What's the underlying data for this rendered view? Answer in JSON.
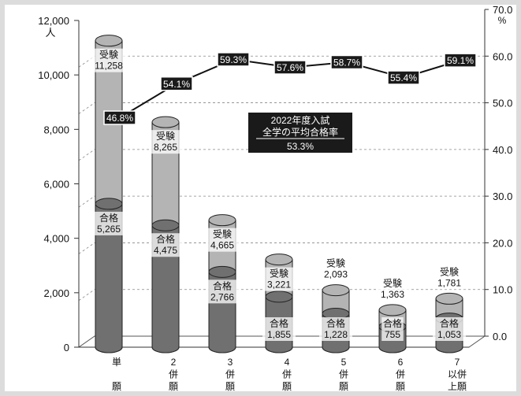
{
  "chart_data": {
    "type": "bar",
    "stacked": true,
    "categories": [
      [
        "単",
        "願"
      ],
      [
        "2",
        "併",
        "願"
      ],
      [
        "3",
        "併",
        "願"
      ],
      [
        "4",
        "併",
        "願"
      ],
      [
        "5",
        "併",
        "願"
      ],
      [
        "6",
        "併",
        "願"
      ],
      [
        "7",
        "以併",
        "上願"
      ]
    ],
    "series": [
      {
        "name": "受験",
        "values": [
          11258,
          8265,
          4665,
          3221,
          2093,
          1363,
          1781
        ],
        "labels": [
          "11,258",
          "8,265",
          "4,665",
          "3,221",
          "2,093",
          "1,363",
          "1,781"
        ],
        "color": "#b4b4b4"
      },
      {
        "name": "合格",
        "values": [
          5265,
          4475,
          2766,
          1855,
          1228,
          755,
          1053
        ],
        "labels": [
          "5,265",
          "4,475",
          "2,766",
          "1,855",
          "1,228",
          "755",
          "1,053"
        ],
        "color": "#707070"
      }
    ],
    "line": {
      "values": [
        46.8,
        54.1,
        59.3,
        57.6,
        58.7,
        55.4,
        59.1
      ],
      "labels": [
        "46.8%",
        "54.1%",
        "59.3%",
        "57.6%",
        "58.7%",
        "55.4%",
        "59.1%"
      ]
    },
    "ylim_left": [
      0,
      12000
    ],
    "ylim_right": [
      0,
      70
    ],
    "left_ticks": [
      "0",
      "2,000",
      "4,000",
      "6,000",
      "8,000",
      "10,000",
      "12,000"
    ],
    "left_unit": "人",
    "right_ticks": [
      "0.0",
      "10.0",
      "20.0",
      "30.0",
      "40.0",
      "50.0",
      "60.0",
      "70.0"
    ],
    "right_unit": "%",
    "annotation": {
      "lines": [
        "2022年度入試",
        "全学の平均合格率"
      ],
      "value": "53.3%"
    },
    "grid": true
  }
}
